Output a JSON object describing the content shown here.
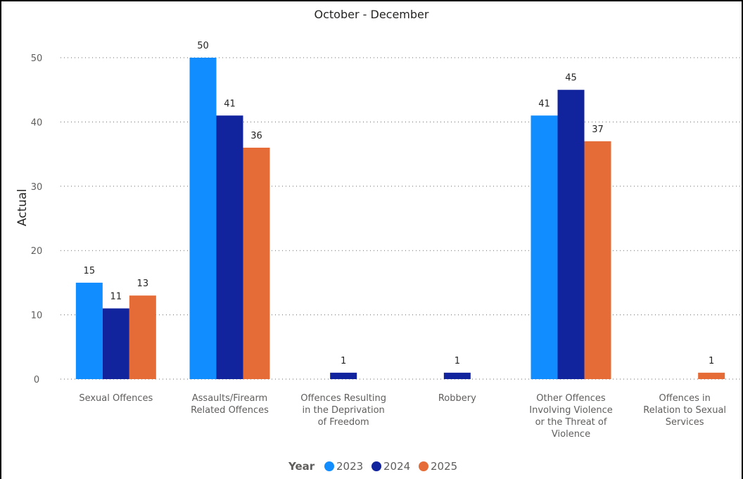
{
  "chart_data": {
    "type": "bar",
    "title": "October - December",
    "ylabel": "Actual",
    "xlabel": "",
    "ylim": [
      0,
      52
    ],
    "yticks": [
      0,
      10,
      20,
      30,
      40,
      50
    ],
    "grid": true,
    "legend": {
      "title": "Year",
      "position": "bottom-center"
    },
    "categories": [
      [
        "Sexual Offences"
      ],
      [
        "Assaults/Firearm",
        "Related Offences"
      ],
      [
        "Offences Resulting",
        "in the Deprivation",
        "of Freedom"
      ],
      [
        "Robbery"
      ],
      [
        "Other Offences",
        "Involving Violence",
        "or the Threat of",
        "Violence"
      ],
      [
        "Offences in",
        "Relation to Sexual",
        "Services"
      ]
    ],
    "series": [
      {
        "name": "2023",
        "color": "#118dff",
        "values": [
          15,
          50,
          null,
          null,
          41,
          null
        ]
      },
      {
        "name": "2024",
        "color": "#12239e",
        "values": [
          11,
          41,
          1,
          1,
          45,
          null
        ]
      },
      {
        "name": "2025",
        "color": "#e66c37",
        "values": [
          13,
          36,
          null,
          null,
          37,
          1
        ]
      }
    ]
  }
}
